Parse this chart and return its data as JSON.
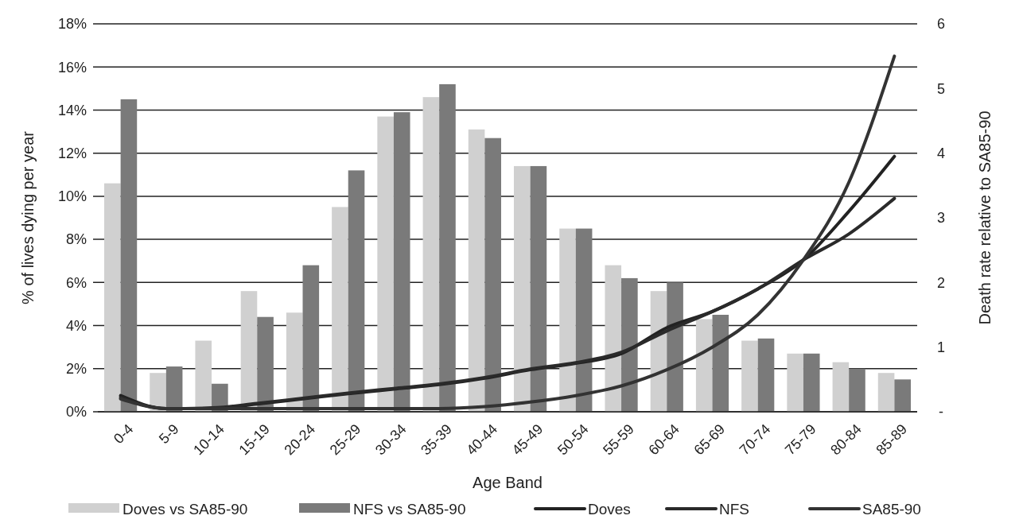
{
  "chart_data": {
    "type": "bar",
    "xlabel": "Age Band",
    "ylabel": "% of lives dying per year",
    "y2label": "Death rate relative to SA85-90",
    "categories": [
      "0-4",
      "5-9",
      "10-14",
      "15-19",
      "20-24",
      "25-29",
      "30-34",
      "35-39",
      "40-44",
      "45-49",
      "50-54",
      "55-59",
      "60-64",
      "65-69",
      "70-74",
      "75-79",
      "80-84",
      "85-89"
    ],
    "series": [
      {
        "name": "Doves vs SA85-90",
        "color": "#d0d0d0",
        "values": [
          10.6,
          1.8,
          3.3,
          5.6,
          4.6,
          9.5,
          13.7,
          14.6,
          13.1,
          11.4,
          8.5,
          6.8,
          5.6,
          4.3,
          3.3,
          2.7,
          2.3,
          1.8
        ]
      },
      {
        "name": "NFS vs SA85-90",
        "color": "#7a7a7a",
        "values": [
          14.5,
          2.1,
          1.3,
          4.4,
          6.8,
          11.2,
          13.9,
          15.2,
          12.7,
          11.4,
          8.5,
          6.2,
          6.0,
          4.5,
          3.4,
          2.7,
          2.0,
          1.5
        ]
      },
      {
        "name": "Doves",
        "type": "line",
        "axis": "y2",
        "color": "#222222",
        "values": [
          0.25,
          0.05,
          0.05,
          0.12,
          0.2,
          0.28,
          0.35,
          0.42,
          0.52,
          0.65,
          0.75,
          0.9,
          1.3,
          1.55,
          1.9,
          2.35,
          3.1,
          3.95
        ]
      },
      {
        "name": "NFS",
        "type": "line",
        "axis": "y2",
        "color": "#2a2a2a",
        "values": [
          0.22,
          0.05,
          0.06,
          0.13,
          0.21,
          0.29,
          0.36,
          0.43,
          0.53,
          0.66,
          0.76,
          0.92,
          1.25,
          1.55,
          1.9,
          2.35,
          2.75,
          3.3
        ]
      },
      {
        "name": "SA85-90",
        "type": "line",
        "axis": "y2",
        "color": "#333333",
        "values": [
          0.2,
          0.05,
          0.05,
          0.05,
          0.05,
          0.05,
          0.05,
          0.05,
          0.08,
          0.15,
          0.25,
          0.4,
          0.65,
          1.0,
          1.5,
          2.35,
          3.55,
          5.5
        ]
      }
    ],
    "ylim": [
      0,
      18
    ],
    "yticks": [
      {
        "value": 0,
        "label": "0%"
      },
      {
        "value": 2,
        "label": "2%"
      },
      {
        "value": 4,
        "label": "4%"
      },
      {
        "value": 6,
        "label": "6%"
      },
      {
        "value": 8,
        "label": "8%"
      },
      {
        "value": 10,
        "label": "10%"
      },
      {
        "value": 12,
        "label": "12%"
      },
      {
        "value": 14,
        "label": "14%"
      },
      {
        "value": 16,
        "label": "16%"
      },
      {
        "value": 18,
        "label": "18%"
      }
    ],
    "y2lim": [
      0,
      6
    ],
    "y2ticks": [
      {
        "value": 0,
        "label": "-"
      },
      1,
      2,
      3,
      4,
      5,
      6
    ],
    "grid": "y",
    "legend": "bottom"
  }
}
